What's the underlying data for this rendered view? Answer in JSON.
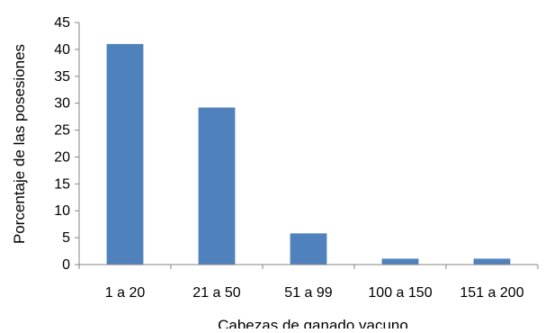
{
  "chart_data": {
    "type": "bar",
    "title": "",
    "xlabel": "Cabezas de ganado vacuno",
    "ylabel": "Porcentaje de las posesiones",
    "categories": [
      "1 a 20",
      "21 a 50",
      "51 a 99",
      "100 a 150",
      "151 a 200"
    ],
    "values": [
      41,
      29.2,
      5.8,
      1.1,
      1.1
    ],
    "ylim": [
      0,
      45
    ],
    "yticks": [
      0,
      5,
      10,
      15,
      20,
      25,
      30,
      35,
      40,
      45
    ],
    "grid": false,
    "legend": "none",
    "colors": {
      "bar": "#4f81bd",
      "axis": "#868686",
      "background": "#ffffff"
    }
  }
}
